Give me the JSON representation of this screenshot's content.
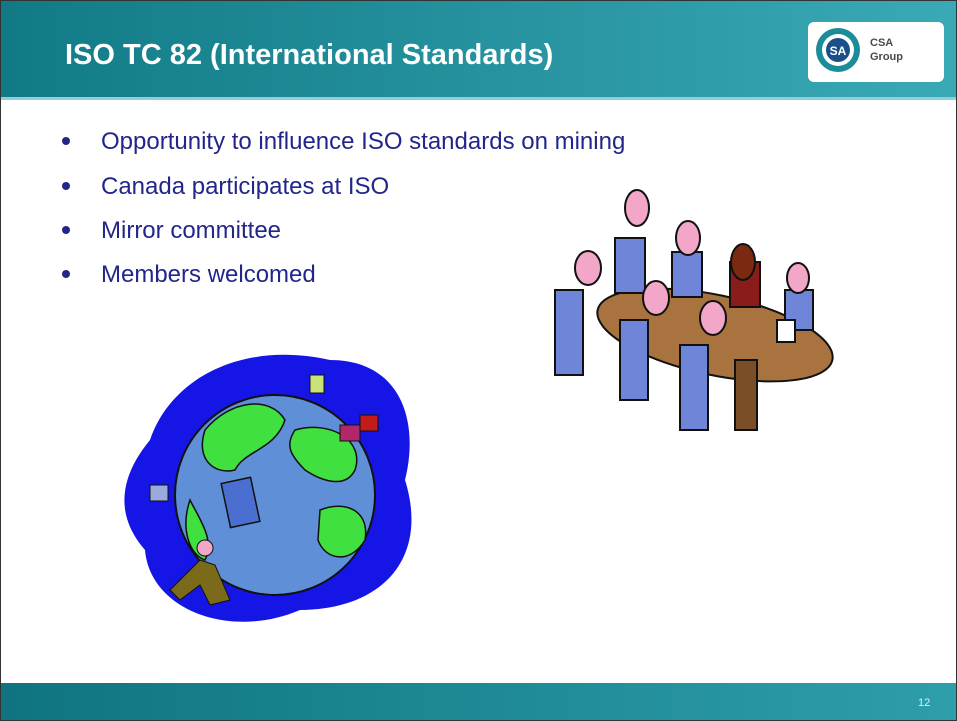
{
  "header": {
    "title": "ISO TC 82 (International Standards)",
    "logo_text": [
      "CSA",
      "Group"
    ]
  },
  "bullets": [
    "Opportunity to influence ISO standards on mining",
    "Canada participates at ISO",
    "Mirror committee",
    "Members welcomed"
  ],
  "footer": {
    "page_number": "12"
  }
}
